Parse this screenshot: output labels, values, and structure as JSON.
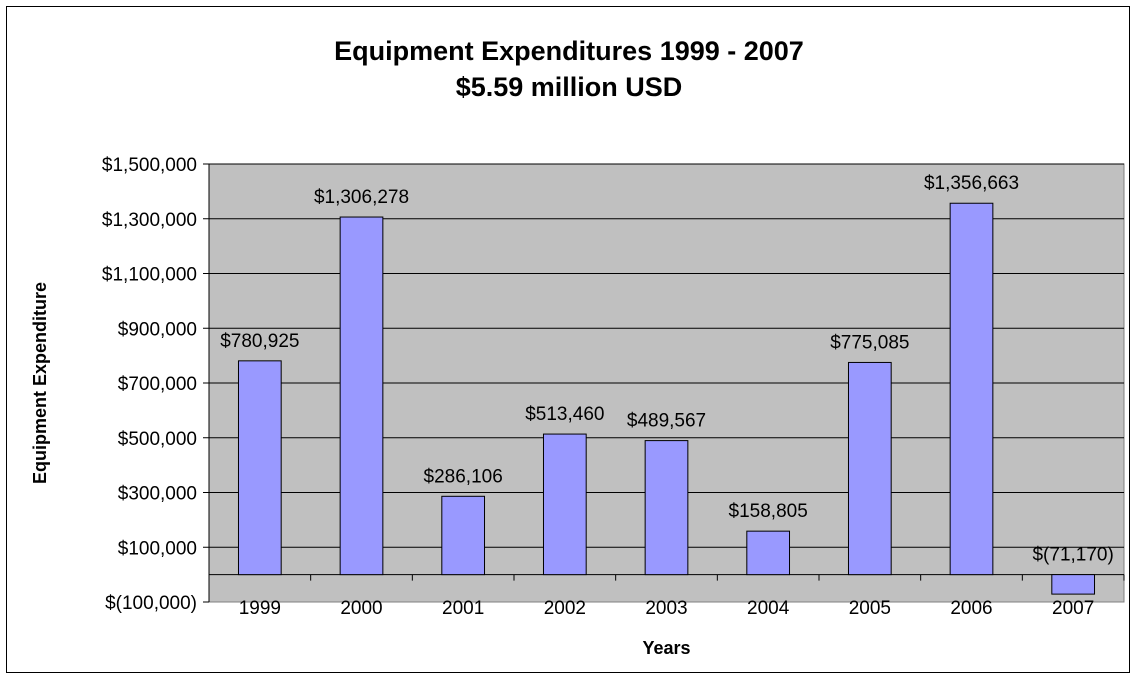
{
  "chart_data": {
    "type": "bar",
    "title": "Equipment Expenditures 1999 - 2007",
    "subtitle": "$5.59 million USD",
    "xlabel": "Years",
    "ylabel": "Equipment Expenditure",
    "categories": [
      "1999",
      "2000",
      "2001",
      "2002",
      "2003",
      "2004",
      "2005",
      "2006",
      "2007"
    ],
    "values": [
      780925,
      1306278,
      286106,
      513460,
      489567,
      158805,
      775085,
      1356663,
      -71170
    ],
    "data_labels": [
      "$780,925",
      "$1,306,278",
      "$286,106",
      "$513,460",
      "$489,567",
      "$158,805",
      "$775,085",
      "$1,356,663",
      "$(71,170)"
    ],
    "ylim": [
      -100000,
      1500000
    ],
    "yticks": [
      -100000,
      100000,
      300000,
      500000,
      700000,
      900000,
      1100000,
      1300000,
      1500000
    ],
    "ytick_labels": [
      "$(100,000)",
      "$100,000",
      "$300,000",
      "$500,000",
      "$700,000",
      "$900,000",
      "$1,100,000",
      "$1,300,000",
      "$1,500,000"
    ],
    "grid": true,
    "legend": "none",
    "colors": {
      "bar_fill": "#9999ff",
      "bar_stroke": "#000000",
      "plot_background": "#c0c0c0",
      "gridline": "#000000"
    }
  }
}
